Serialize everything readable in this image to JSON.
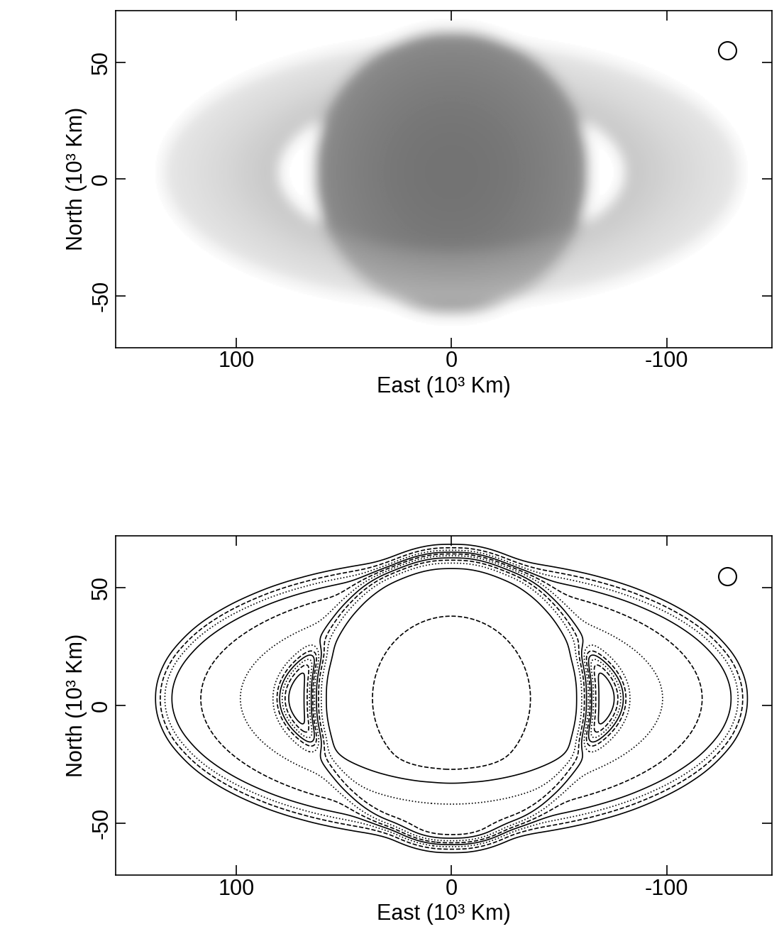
{
  "chart_data": [
    {
      "type": "image",
      "xlabel": "East (10³ Km)",
      "ylabel": "North (10³ Km)",
      "xlim": [
        156,
        -149
      ],
      "ylim": [
        -72,
        72
      ],
      "xticks": [
        100,
        0,
        -100
      ],
      "yticks": [
        -50,
        0,
        50
      ],
      "planet": {
        "x": 0,
        "y": 3,
        "rx": 64,
        "ry": 61,
        "value": 1.0
      },
      "rings": {
        "y": 3,
        "inner": 80,
        "outer": 135,
        "axis_ratio": 0.42,
        "value": 0.45
      },
      "beam_sigma": 3,
      "color_range": [
        0,
        1.6
      ],
      "cutoff": 0.04,
      "beam": {
        "x": -128,
        "y": 55
      }
    },
    {
      "type": "contour",
      "xlabel": "East (10³ Km)",
      "ylabel": "North (10³ Km)",
      "xlim": [
        156,
        -149
      ],
      "ylim": [
        -72,
        72
      ],
      "xticks": [
        100,
        0,
        -100
      ],
      "yticks": [
        -50,
        0,
        50
      ],
      "planet": {
        "x": 0,
        "y": 3,
        "rx": 64,
        "ry": 61,
        "value": 1.0
      },
      "rings": {
        "y": 3,
        "inner": 80,
        "outer": 135,
        "axis_ratio": 0.42,
        "value": 0.45
      },
      "beam_sigma": 3,
      "levels": [
        0.05,
        0.12,
        0.2,
        0.28,
        0.36,
        0.45,
        0.55,
        0.65,
        0.75,
        0.85,
        0.95
      ],
      "beam": {
        "x": -128,
        "y": 55
      }
    }
  ]
}
